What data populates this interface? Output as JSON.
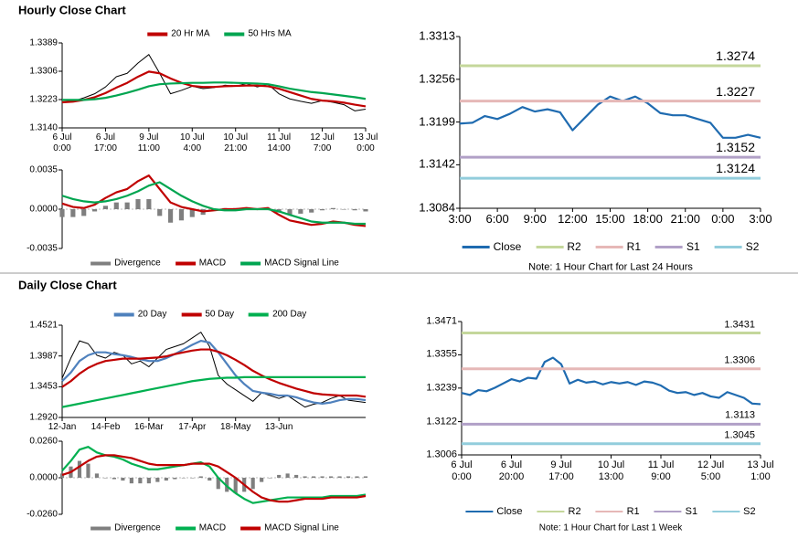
{
  "chart_data": [
    {
      "type": "line",
      "title": "Hourly Close Chart",
      "categories": [
        "6 Jul\n0:00",
        null,
        null,
        null,
        "6 Jul\n17:00",
        null,
        null,
        null,
        "9 Jul\n11:00",
        null,
        null,
        null,
        "10 Jul\n4:00",
        null,
        null,
        null,
        "10 Jul\n21:00",
        null,
        null,
        null,
        "11 Jul\n14:00",
        null,
        null,
        null,
        "12 Jul\n7:00",
        null,
        null,
        null,
        "13 Jul\n0:00"
      ],
      "ylim": [
        1.314,
        1.3389
      ],
      "yticks": [
        1.3389,
        1.3306,
        1.3223,
        {
          "value": 1.314,
          "label": "1.3140"
        }
      ],
      "series": [
        {
          "color": "#000000",
          "values": [
            1.3215,
            1.3218,
            1.3228,
            1.324,
            1.326,
            1.329,
            1.33,
            1.333,
            1.3355,
            1.33,
            1.324,
            1.325,
            1.3262,
            1.3255,
            1.3258,
            1.3265,
            1.3262,
            1.327,
            1.326,
            1.3268,
            1.324,
            1.3225,
            1.3218,
            1.3212,
            1.322,
            1.3215,
            1.3208,
            1.319,
            1.3195
          ]
        },
        {
          "name": "20 Hr MA",
          "color": "#c00000",
          "values": [
            1.3215,
            1.3217,
            1.3222,
            1.323,
            1.3242,
            1.3258,
            1.3272,
            1.329,
            1.3305,
            1.33,
            1.3285,
            1.3272,
            1.3263,
            1.326,
            1.326,
            1.3262,
            1.3263,
            1.3264,
            1.3264,
            1.3262,
            1.3255,
            1.3245,
            1.3235,
            1.3225,
            1.322,
            1.3218,
            1.3214,
            1.3208,
            1.3203
          ]
        },
        {
          "name": "50 Hrs MA",
          "color": "#00a550",
          "values": [
            1.3222,
            1.3222,
            1.3222,
            1.3224,
            1.3228,
            1.3235,
            1.3243,
            1.3252,
            1.3262,
            1.3268,
            1.327,
            1.3271,
            1.3272,
            1.3272,
            1.3273,
            1.3273,
            1.3272,
            1.3271,
            1.327,
            1.3268,
            1.3262,
            1.3255,
            1.325,
            1.3245,
            1.3242,
            1.3238,
            1.3234,
            1.323,
            1.3225
          ]
        }
      ]
    },
    {
      "type": "bar-line",
      "ylim": [
        -0.0035,
        0.0035
      ],
      "yticks": [
        0.0035,
        {
          "value": 0,
          "label": "0.0000"
        },
        -0.0035
      ],
      "series": [
        {
          "name": "Divergence",
          "kind": "bar",
          "color": "#7f7f7f",
          "values": [
            -0.0007,
            -0.0007,
            -0.0006,
            -0.0002,
            0.0003,
            0.0006,
            0.0006,
            0.0009,
            0.0009,
            -0.0006,
            -0.0012,
            -0.001,
            -0.0007,
            -0.0005,
            -0.0001,
            0.0001,
            0.0001,
            0.0001,
            0,
            0.0001,
            -0.0003,
            -0.0005,
            -0.0004,
            -0.0003,
            -0.0001,
            0.0001,
            0,
            -0.0001,
            -0.0002
          ]
        },
        {
          "name": "MACD",
          "color": "#c00000",
          "values": [
            0.0005,
            0.0002,
            0.0001,
            0.0004,
            0.001,
            0.0015,
            0.0018,
            0.0025,
            0.003,
            0.0018,
            0.0006,
            0.0002,
            0,
            -0.0002,
            -0.0001,
            0,
            0,
            0.0001,
            0,
            0.0001,
            -0.0005,
            -0.001,
            -0.0012,
            -0.0014,
            -0.0013,
            -0.0011,
            -0.0012,
            -0.0014,
            -0.0015
          ]
        },
        {
          "name": "MACD Signal Line",
          "color": "#00a550",
          "values": [
            0.0012,
            0.0009,
            0.0007,
            0.0006,
            0.0007,
            0.0009,
            0.0012,
            0.0016,
            0.0021,
            0.0024,
            0.0018,
            0.0012,
            0.0007,
            0.0003,
            0,
            -0.0001,
            -0.0001,
            0,
            0,
            0,
            -0.0002,
            -0.0005,
            -0.0008,
            -0.0011,
            -0.0012,
            -0.0012,
            -0.0012,
            -0.0013,
            -0.0013
          ]
        }
      ]
    },
    {
      "type": "line",
      "note": "Note: 1 Hour Chart for Last 24 Hours",
      "categories": [
        "3:00",
        null,
        null,
        "6:00",
        null,
        null,
        "9:00",
        null,
        null,
        "12:00",
        null,
        null,
        "15:00",
        null,
        null,
        "18:00",
        null,
        null,
        "21:00",
        null,
        null,
        "0:00",
        null,
        null,
        "3:00"
      ],
      "ylim": [
        1.3084,
        1.3313
      ],
      "yticks": [
        1.3313,
        1.3256,
        1.3199,
        1.3142,
        1.3084
      ],
      "series": [
        {
          "name": "Close",
          "color": "#1f6bb0",
          "values": [
            1.3197,
            1.3198,
            1.3207,
            1.3203,
            1.321,
            1.3219,
            1.3213,
            1.3216,
            1.3212,
            1.3188,
            1.3205,
            1.3222,
            1.3233,
            1.3227,
            1.3233,
            1.3224,
            1.3211,
            1.3208,
            1.3208,
            1.3203,
            1.3198,
            1.3178,
            1.3178,
            1.3182,
            1.3178
          ]
        },
        {
          "name": "R2",
          "color": "#c4d79b",
          "level": 1.3274
        },
        {
          "name": "R1",
          "color": "#e6b8b7",
          "level": 1.3227
        },
        {
          "name": "S1",
          "color": "#b1a0c7",
          "level": 1.3152
        },
        {
          "name": "S2",
          "color": "#92cddc",
          "level": 1.3124
        }
      ]
    },
    {
      "type": "line",
      "title": "Daily Close Chart",
      "categories": [
        "12-Jan",
        null,
        null,
        null,
        null,
        "14-Feb",
        null,
        null,
        null,
        null,
        "16-Mar",
        null,
        null,
        null,
        null,
        "17-Apr",
        null,
        null,
        null,
        null,
        "18-May",
        null,
        null,
        null,
        null,
        "13-Jun",
        null,
        null,
        null,
        null,
        null,
        null,
        null,
        null,
        null,
        null
      ],
      "ylim": [
        1.292,
        1.4521
      ],
      "yticks": [
        1.4521,
        1.3987,
        1.3453,
        {
          "value": 1.292,
          "label": "1.2920"
        }
      ],
      "series": [
        {
          "color": "#000000",
          "values": [
            1.36,
            1.395,
            1.425,
            1.42,
            1.4,
            1.395,
            1.405,
            1.4,
            1.385,
            1.39,
            1.38,
            1.395,
            1.41,
            1.415,
            1.42,
            1.43,
            1.44,
            1.415,
            1.365,
            1.35,
            1.34,
            1.33,
            1.32,
            1.335,
            1.33,
            1.325,
            1.33,
            1.32,
            1.31,
            1.315,
            1.318,
            1.325,
            1.33,
            1.322,
            1.32,
            1.318
          ]
        },
        {
          "name": "20 Day",
          "color": "#4f81bd",
          "values": [
            1.355,
            1.37,
            1.39,
            1.4,
            1.405,
            1.405,
            1.402,
            1.4,
            1.397,
            1.393,
            1.39,
            1.39,
            1.395,
            1.402,
            1.41,
            1.418,
            1.425,
            1.422,
            1.405,
            1.385,
            1.365,
            1.35,
            1.338,
            1.335,
            1.333,
            1.33,
            1.33,
            1.327,
            1.322,
            1.318,
            1.316,
            1.318,
            1.322,
            1.324,
            1.324,
            1.322
          ]
        },
        {
          "name": "50 Day",
          "color": "#c00000",
          "values": [
            1.345,
            1.355,
            1.368,
            1.378,
            1.385,
            1.39,
            1.392,
            1.394,
            1.394,
            1.394,
            1.395,
            1.396,
            1.398,
            1.402,
            1.405,
            1.408,
            1.41,
            1.41,
            1.406,
            1.4,
            1.392,
            1.383,
            1.373,
            1.365,
            1.358,
            1.352,
            1.347,
            1.342,
            1.338,
            1.334,
            1.332,
            1.331,
            1.33,
            1.33,
            1.33,
            1.328
          ]
        },
        {
          "name": "200 Day",
          "color": "#00b050",
          "values": [
            1.31,
            1.313,
            1.316,
            1.319,
            1.322,
            1.325,
            1.328,
            1.331,
            1.334,
            1.337,
            1.34,
            1.343,
            1.346,
            1.349,
            1.352,
            1.355,
            1.357,
            1.359,
            1.36,
            1.361,
            1.361,
            1.362,
            1.362,
            1.362,
            1.362,
            1.362,
            1.362,
            1.362,
            1.362,
            1.362,
            1.362,
            1.362,
            1.362,
            1.362,
            1.362,
            1.362
          ]
        }
      ]
    },
    {
      "type": "bar-line",
      "ylim": [
        -0.026,
        0.026
      ],
      "yticks": [
        {
          "value": 0.026,
          "label": "0.0260"
        },
        {
          "value": 0,
          "label": "0.0000"
        },
        {
          "value": -0.026,
          "label": "-0.0260"
        }
      ],
      "series": [
        {
          "name": "Divergence",
          "kind": "bar",
          "color": "#7f7f7f",
          "values": [
            0.003,
            0.008,
            0.012,
            0.01,
            0.003,
            0,
            -0.001,
            -0.002,
            -0.004,
            -0.004,
            -0.004,
            -0.003,
            -0.002,
            -0.001,
            0,
            0,
            0.001,
            -0.002,
            -0.008,
            -0.01,
            -0.011,
            -0.01,
            -0.008,
            -0.003,
            0,
            0.002,
            0.003,
            0.002,
            0.001,
            0.001,
            0.001,
            0.001,
            0.001,
            0.001,
            0.001,
            0.001
          ]
        },
        {
          "name": "MACD",
          "color": "#00b050",
          "values": [
            0.005,
            0.012,
            0.02,
            0.022,
            0.018,
            0.016,
            0.015,
            0.013,
            0.01,
            0.008,
            0.006,
            0.006,
            0.007,
            0.008,
            0.009,
            0.01,
            0.011,
            0.008,
            0,
            -0.006,
            -0.011,
            -0.015,
            -0.018,
            -0.017,
            -0.016,
            -0.015,
            -0.014,
            -0.014,
            -0.014,
            -0.014,
            -0.014,
            -0.013,
            -0.013,
            -0.013,
            -0.013,
            -0.012
          ]
        },
        {
          "name": "MACD Signal Line",
          "color": "#c00000",
          "values": [
            0.002,
            0.004,
            0.008,
            0.012,
            0.015,
            0.016,
            0.016,
            0.015,
            0.014,
            0.012,
            0.01,
            0.009,
            0.009,
            0.009,
            0.009,
            0.01,
            0.01,
            0.01,
            0.008,
            0.004,
            0,
            -0.005,
            -0.01,
            -0.014,
            -0.016,
            -0.017,
            -0.017,
            -0.016,
            -0.015,
            -0.015,
            -0.015,
            -0.014,
            -0.014,
            -0.014,
            -0.014,
            -0.013
          ]
        }
      ]
    },
    {
      "type": "line",
      "note": "Note: 1 Hour Chart for Last 1 Week",
      "categories": [
        "6 Jul\n0:00",
        null,
        null,
        null,
        null,
        null,
        "6 Jul\n20:00",
        null,
        null,
        null,
        null,
        null,
        "9 Jul\n17:00",
        null,
        null,
        null,
        null,
        null,
        "10 Jul\n13:00",
        null,
        null,
        null,
        null,
        null,
        "11 Jul\n9:00",
        null,
        null,
        null,
        null,
        null,
        "12 Jul\n5:00",
        null,
        null,
        null,
        null,
        null,
        "13 Jul\n1:00"
      ],
      "ylim": [
        1.3006,
        1.3471
      ],
      "yticks": [
        1.3471,
        1.3355,
        1.3239,
        1.3122,
        1.3006
      ],
      "series": [
        {
          "name": "Close",
          "color": "#1f6bb0",
          "values": [
            1.3222,
            1.3215,
            1.3232,
            1.3228,
            1.324,
            1.3255,
            1.327,
            1.3262,
            1.3275,
            1.3272,
            1.333,
            1.3345,
            1.3322,
            1.3255,
            1.3268,
            1.3258,
            1.3262,
            1.3252,
            1.326,
            1.3255,
            1.326,
            1.325,
            1.3262,
            1.3258,
            1.3248,
            1.323,
            1.3222,
            1.3225,
            1.3215,
            1.3222,
            1.321,
            1.3205,
            1.3225,
            1.3215,
            1.3205,
            1.3185,
            1.3183
          ]
        },
        {
          "name": "R2",
          "color": "#c4d79b",
          "level": 1.3431
        },
        {
          "name": "R1",
          "color": "#e6b8b7",
          "level": 1.3306
        },
        {
          "name": "S1",
          "color": "#b1a0c7",
          "level": 1.3113
        },
        {
          "name": "S2",
          "color": "#92cddc",
          "level": 1.3045
        }
      ]
    }
  ]
}
